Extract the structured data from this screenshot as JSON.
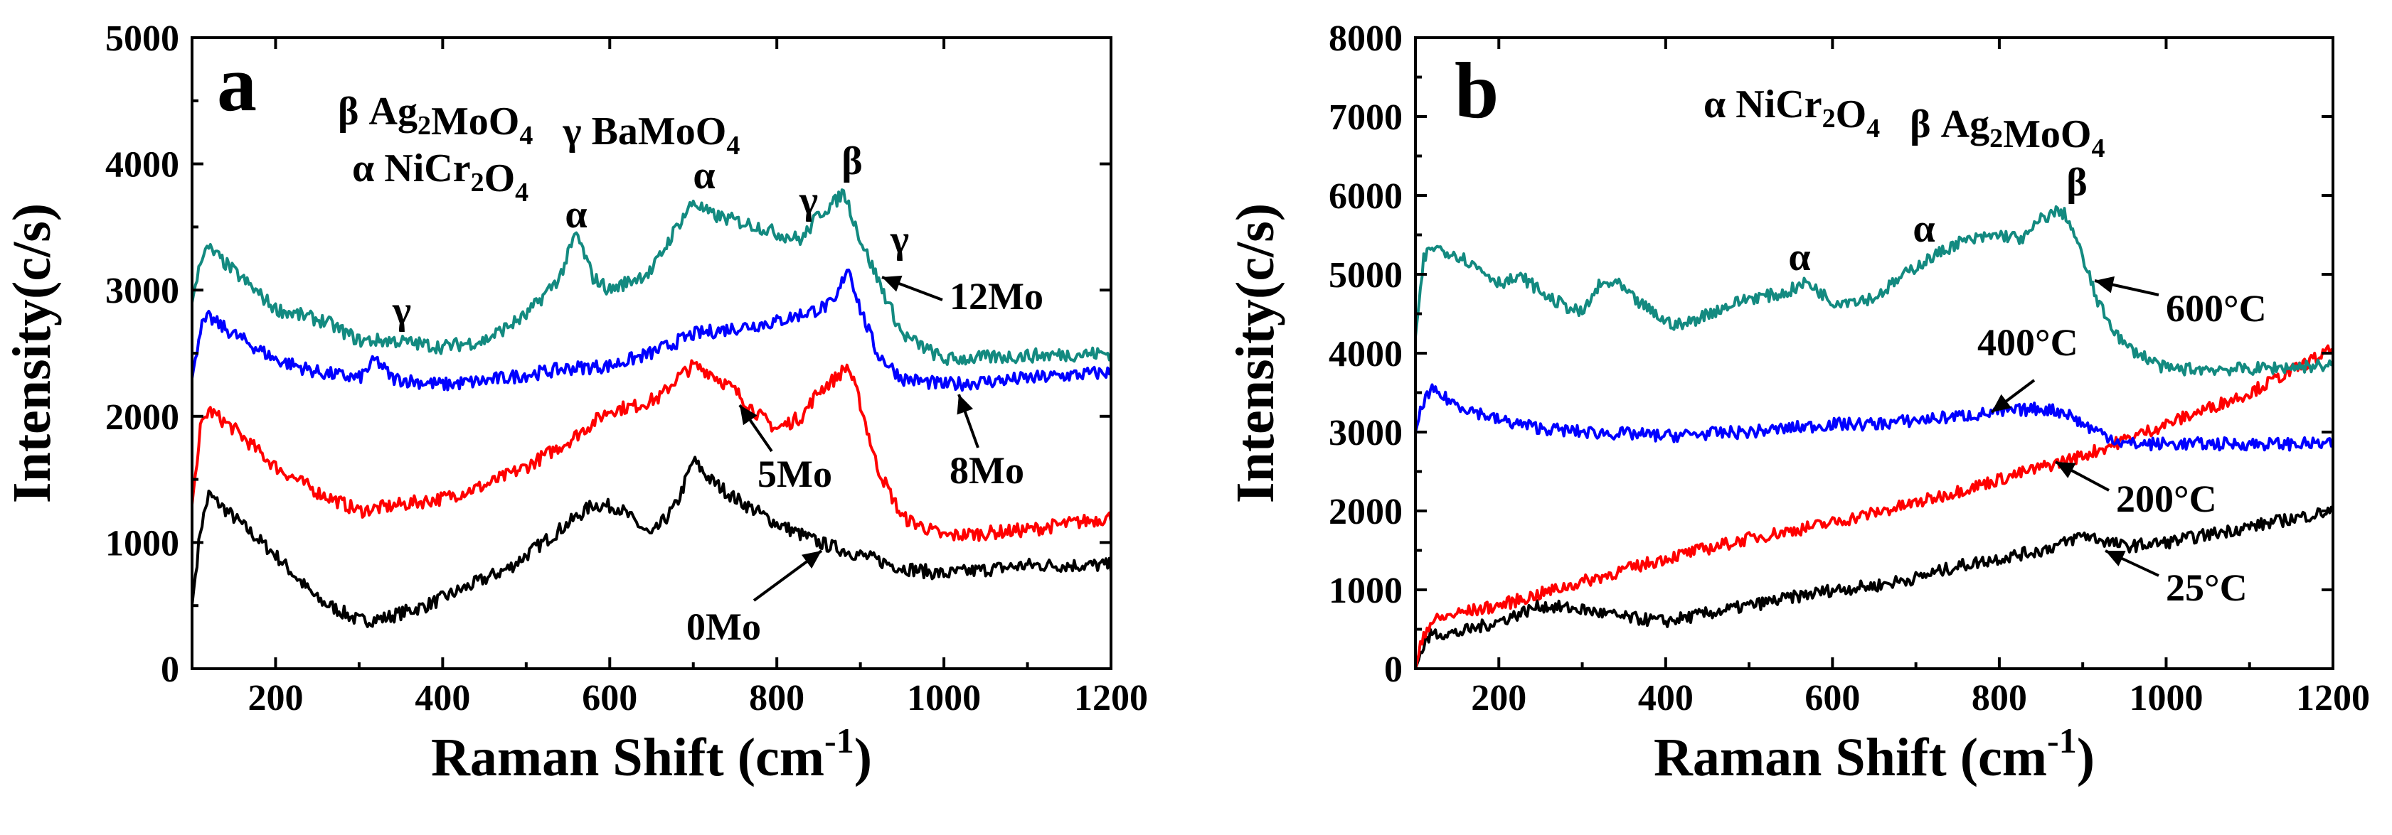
{
  "chart_data": [
    {
      "type": "line",
      "panel_label": "a",
      "xlabel": "Raman Shift (cm",
      "xlabel_sup": "-1",
      "xlabel_close": ")",
      "ylabel": "Intensity(c/s)",
      "xlim": [
        100,
        1200
      ],
      "ylim": [
        0,
        5000
      ],
      "xticks": [
        200,
        400,
        600,
        800,
        1000,
        1200
      ],
      "yticks": [
        0,
        1000,
        2000,
        3000,
        4000,
        5000
      ],
      "legend_lines": [
        [
          {
            "t": "β Ag"
          },
          {
            "t": "2",
            "sub": true
          },
          {
            "t": "MoO"
          },
          {
            "t": "4",
            "sub": true
          },
          {
            "t": "   γ BaMoO"
          },
          {
            "t": "4",
            "sub": true
          }
        ],
        [
          {
            "t": "α NiCr"
          },
          {
            "t": "2",
            "sub": true
          },
          {
            "t": "O"
          },
          {
            "t": "4",
            "sub": true
          }
        ]
      ],
      "series": [
        {
          "name": "0Mo",
          "color": "#000000",
          "x": [
            100,
            110,
            120,
            150,
            200,
            250,
            300,
            330,
            380,
            430,
            480,
            530,
            580,
            610,
            650,
            680,
            700,
            720,
            750,
            800,
            850,
            900,
            950,
            1000,
            1100,
            1200
          ],
          "y": [
            500,
            1100,
            1380,
            1200,
            900,
            550,
            380,
            400,
            500,
            650,
            800,
            1050,
            1300,
            1280,
            1050,
            1300,
            1650,
            1500,
            1350,
            1150,
            1000,
            900,
            800,
            750,
            820,
            820
          ]
        },
        {
          "name": "5Mo",
          "color": "#ff0000",
          "x": [
            100,
            110,
            120,
            150,
            200,
            250,
            300,
            350,
            400,
            450,
            500,
            550,
            600,
            630,
            660,
            680,
            700,
            720,
            750,
            780,
            800,
            830,
            850,
            870,
            885,
            900,
            920,
            950,
            1000,
            1100,
            1200
          ],
          "y": [
            1300,
            1900,
            2050,
            1900,
            1600,
            1400,
            1250,
            1300,
            1350,
            1450,
            1600,
            1800,
            2050,
            2080,
            2150,
            2300,
            2400,
            2350,
            2200,
            2000,
            1900,
            2000,
            2200,
            2300,
            2400,
            2100,
            1600,
            1200,
            1050,
            1100,
            1200
          ]
        },
        {
          "name": "8Mo",
          "color": "#0000ff",
          "x": [
            100,
            110,
            120,
            150,
            200,
            250,
            300,
            320,
            340,
            400,
            450,
            500,
            550,
            600,
            650,
            700,
            750,
            800,
            850,
            870,
            885,
            900,
            920,
            950,
            1000,
            1100,
            1200
          ],
          "y": [
            2300,
            2700,
            2780,
            2650,
            2450,
            2350,
            2300,
            2450,
            2300,
            2250,
            2280,
            2330,
            2380,
            2400,
            2500,
            2650,
            2700,
            2750,
            2850,
            2900,
            3200,
            2850,
            2500,
            2300,
            2250,
            2300,
            2350
          ]
        },
        {
          "name": "12Mo",
          "color": "#138a80",
          "x": [
            100,
            110,
            120,
            150,
            200,
            230,
            260,
            300,
            340,
            400,
            450,
            500,
            540,
            560,
            580,
            600,
            650,
            680,
            700,
            720,
            750,
            780,
            800,
            830,
            850,
            870,
            880,
            890,
            900,
            920,
            950,
            1000,
            1100,
            1200
          ],
          "y": [
            2900,
            3250,
            3330,
            3150,
            2850,
            2800,
            2750,
            2600,
            2600,
            2550,
            2600,
            2800,
            3100,
            3450,
            3100,
            3000,
            3150,
            3500,
            3700,
            3600,
            3550,
            3500,
            3450,
            3400,
            3600,
            3700,
            3780,
            3600,
            3400,
            3100,
            2650,
            2450,
            2480,
            2500
          ]
        }
      ],
      "annotations": [
        "12Mo",
        "8Mo",
        "5Mo",
        "0Mo"
      ],
      "peak_labels": [
        "γ",
        "α",
        "α",
        "γ",
        "β",
        "γ"
      ]
    },
    {
      "type": "line",
      "panel_label": "b",
      "xlabel": "Raman Shift (cm",
      "xlabel_sup": "-1",
      "xlabel_close": ")",
      "ylabel": "Intensity(c/s)",
      "xlim": [
        100,
        1200
      ],
      "ylim": [
        0,
        8000
      ],
      "xticks": [
        200,
        400,
        600,
        800,
        1000,
        1200
      ],
      "yticks": [
        0,
        1000,
        2000,
        3000,
        4000,
        5000,
        6000,
        7000,
        8000
      ],
      "legend_lines": [
        [
          {
            "t": "α NiCr"
          },
          {
            "t": "2",
            "sub": true
          },
          {
            "t": "O"
          },
          {
            "t": "4",
            "sub": true
          },
          {
            "t": "   β Ag"
          },
          {
            "t": "2",
            "sub": true
          },
          {
            "t": "MoO"
          },
          {
            "t": "4",
            "sub": true
          }
        ]
      ],
      "series": [
        {
          "name": "25°C",
          "color": "#000000",
          "x": [
            100,
            110,
            120,
            150,
            200,
            250,
            300,
            350,
            400,
            450,
            500,
            550,
            600,
            650,
            700,
            750,
            800,
            850,
            880,
            900,
            950,
            1000,
            1100,
            1200
          ],
          "y": [
            0,
            300,
            450,
            450,
            600,
            800,
            750,
            650,
            600,
            700,
            800,
            900,
            1000,
            1050,
            1150,
            1300,
            1400,
            1500,
            1600,
            1700,
            1550,
            1600,
            1800,
            2000
          ]
        },
        {
          "name": "200°C",
          "color": "#ff0000",
          "x": [
            100,
            110,
            120,
            150,
            200,
            300,
            400,
            500,
            600,
            700,
            800,
            900,
            1000,
            1100,
            1200
          ],
          "y": [
            0,
            450,
            600,
            700,
            800,
            1100,
            1400,
            1650,
            1850,
            2100,
            2400,
            2700,
            3100,
            3500,
            4050
          ]
        },
        {
          "name": "400°C",
          "color": "#0000ff",
          "x": [
            100,
            110,
            120,
            150,
            200,
            250,
            300,
            350,
            400,
            450,
            500,
            550,
            600,
            650,
            700,
            750,
            800,
            850,
            880,
            900,
            950,
            1000,
            1100,
            1200
          ],
          "y": [
            3000,
            3400,
            3520,
            3350,
            3150,
            3050,
            3000,
            2980,
            2950,
            2980,
            3000,
            3050,
            3100,
            3100,
            3150,
            3200,
            3250,
            3300,
            3250,
            3100,
            2850,
            2850,
            2850,
            2850
          ]
        },
        {
          "name": "600°C",
          "color": "#138a80",
          "x": [
            100,
            110,
            120,
            150,
            180,
            200,
            230,
            260,
            300,
            320,
            340,
            360,
            400,
            420,
            450,
            500,
            540,
            570,
            600,
            650,
            700,
            750,
            800,
            830,
            850,
            870,
            880,
            890,
            900,
            920,
            950,
            1000,
            1100,
            1200
          ],
          "y": [
            4200,
            5200,
            5350,
            5250,
            5050,
            4900,
            4950,
            4700,
            4500,
            4850,
            4900,
            4700,
            4400,
            4350,
            4500,
            4700,
            4750,
            4900,
            4650,
            4700,
            5100,
            5400,
            5500,
            5450,
            5700,
            5800,
            5750,
            5500,
            5200,
            4600,
            4100,
            3800,
            3800,
            3850
          ]
        }
      ],
      "annotations": [
        "600°C",
        "400°C",
        "200°C",
        "25°C"
      ],
      "peak_labels": [
        "α",
        "α",
        "β"
      ]
    }
  ]
}
